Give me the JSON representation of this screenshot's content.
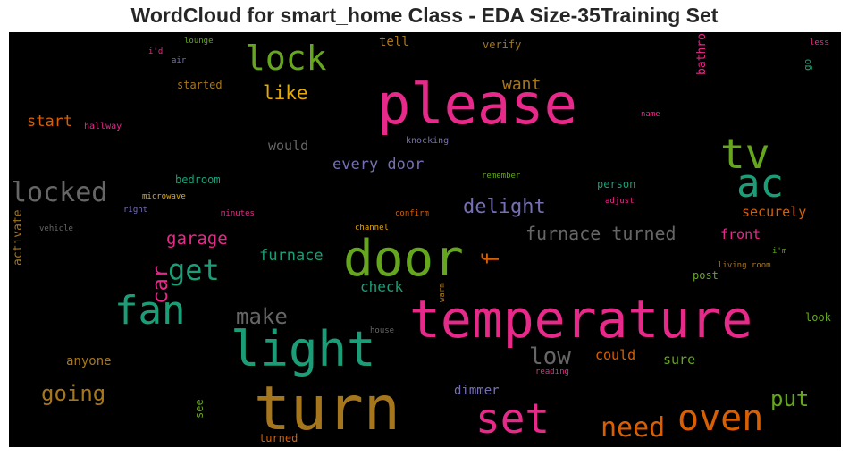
{
  "chart": {
    "title": "WordCloud for smart_home Class - EDA Size-35Training Set"
  },
  "chart_data": {
    "type": "wordcloud",
    "title": "WordCloud for smart_home Class - EDA Size-35Training Set",
    "background": "#000000",
    "words": [
      {
        "text": "please",
        "weight": 1.0,
        "color": "#e7298a"
      },
      {
        "text": "turn",
        "weight": 0.92,
        "color": "#a6761d"
      },
      {
        "text": "temperature",
        "weight": 0.88,
        "color": "#e7298a"
      },
      {
        "text": "door",
        "weight": 0.85,
        "color": "#66a61e"
      },
      {
        "text": "light",
        "weight": 0.82,
        "color": "#1b9e77"
      },
      {
        "text": "tv",
        "weight": 0.72,
        "color": "#66a61e"
      },
      {
        "text": "set",
        "weight": 0.7,
        "color": "#e7298a"
      },
      {
        "text": "ac",
        "weight": 0.68,
        "color": "#1b9e77"
      },
      {
        "text": "fan",
        "weight": 0.66,
        "color": "#1b9e77"
      },
      {
        "text": "oven",
        "weight": 0.6,
        "color": "#d95f02"
      },
      {
        "text": "lock",
        "weight": 0.58,
        "color": "#66a61e"
      },
      {
        "text": "locked",
        "weight": 0.5,
        "color": "#666666"
      },
      {
        "text": "get",
        "weight": 0.5,
        "color": "#1b9e77"
      },
      {
        "text": "need",
        "weight": 0.48,
        "color": "#d95f02"
      },
      {
        "text": "car",
        "weight": 0.42,
        "color": "#e7298a"
      },
      {
        "text": "f",
        "weight": 0.4,
        "color": "#d95f02"
      },
      {
        "text": "low",
        "weight": 0.4,
        "color": "#666666"
      },
      {
        "text": "make",
        "weight": 0.38,
        "color": "#666666"
      },
      {
        "text": "put",
        "weight": 0.36,
        "color": "#66a61e"
      },
      {
        "text": "going",
        "weight": 0.36,
        "color": "#a6761d"
      },
      {
        "text": "delight",
        "weight": 0.36,
        "color": "#7570b3"
      },
      {
        "text": "like",
        "weight": 0.33,
        "color": "#e6ab02"
      },
      {
        "text": "furnace turned",
        "weight": 0.32,
        "color": "#666666"
      },
      {
        "text": "garage",
        "weight": 0.31,
        "color": "#e7298a"
      },
      {
        "text": "want",
        "weight": 0.3,
        "color": "#a6761d"
      },
      {
        "text": "furnace",
        "weight": 0.29,
        "color": "#1b9e77"
      },
      {
        "text": "every door",
        "weight": 0.29,
        "color": "#7570b3"
      },
      {
        "text": "start",
        "weight": 0.27,
        "color": "#d95f02"
      },
      {
        "text": "check",
        "weight": 0.26,
        "color": "#1b9e77"
      },
      {
        "text": "would",
        "weight": 0.26,
        "color": "#666666"
      },
      {
        "text": "securely",
        "weight": 0.25,
        "color": "#d95f02"
      },
      {
        "text": "front",
        "weight": 0.24,
        "color": "#e7298a"
      },
      {
        "text": "could",
        "weight": 0.24,
        "color": "#d95f02"
      },
      {
        "text": "sure",
        "weight": 0.24,
        "color": "#66a61e"
      },
      {
        "text": "anyone",
        "weight": 0.22,
        "color": "#a6761d"
      },
      {
        "text": "dimmer",
        "weight": 0.22,
        "color": "#7570b3"
      },
      {
        "text": "tell",
        "weight": 0.22,
        "color": "#a6761d"
      },
      {
        "text": "bathroom",
        "weight": 0.22,
        "color": "#e7298a"
      },
      {
        "text": "activate",
        "weight": 0.2,
        "color": "#a6761d"
      },
      {
        "text": "see",
        "weight": 0.2,
        "color": "#66a61e"
      },
      {
        "text": "started",
        "weight": 0.18,
        "color": "#a6761d"
      },
      {
        "text": "bedroom",
        "weight": 0.18,
        "color": "#1b9e77"
      },
      {
        "text": "person",
        "weight": 0.18,
        "color": "#1b9e77"
      },
      {
        "text": "verify",
        "weight": 0.17,
        "color": "#a6761d"
      },
      {
        "text": "look",
        "weight": 0.17,
        "color": "#66a61e"
      },
      {
        "text": "post",
        "weight": 0.17,
        "color": "#66a61e"
      },
      {
        "text": "turned",
        "weight": 0.16,
        "color": "#d95f02"
      },
      {
        "text": "go",
        "weight": 0.16,
        "color": "#1b9e77"
      },
      {
        "text": "knocking",
        "weight": 0.14,
        "color": "#7570b3"
      },
      {
        "text": "hallway",
        "weight": 0.13,
        "color": "#e7298a"
      },
      {
        "text": "lounge",
        "weight": 0.13,
        "color": "#66a61e"
      },
      {
        "text": "i'd",
        "weight": 0.13,
        "color": "#e7298a"
      },
      {
        "text": "air",
        "weight": 0.13,
        "color": "#7570b3"
      },
      {
        "text": "name",
        "weight": 0.13,
        "color": "#e7298a"
      },
      {
        "text": "remember",
        "weight": 0.13,
        "color": "#66a61e"
      },
      {
        "text": "microwave",
        "weight": 0.13,
        "color": "#e6ab02"
      },
      {
        "text": "right",
        "weight": 0.13,
        "color": "#7570b3"
      },
      {
        "text": "minutes",
        "weight": 0.13,
        "color": "#e7298a"
      },
      {
        "text": "vehicle",
        "weight": 0.13,
        "color": "#666666"
      },
      {
        "text": "channel",
        "weight": 0.13,
        "color": "#e6ab02"
      },
      {
        "text": "confirm",
        "weight": 0.13,
        "color": "#d95f02"
      },
      {
        "text": "adjust",
        "weight": 0.13,
        "color": "#e7298a"
      },
      {
        "text": "less",
        "weight": 0.13,
        "color": "#e7298a"
      },
      {
        "text": "i'm",
        "weight": 0.13,
        "color": "#66a61e"
      },
      {
        "text": "living room",
        "weight": 0.13,
        "color": "#a6761d"
      },
      {
        "text": "warm",
        "weight": 0.13,
        "color": "#a6761d"
      },
      {
        "text": "house",
        "weight": 0.13,
        "color": "#666666"
      },
      {
        "text": "reading",
        "weight": 0.13,
        "color": "#e7298a"
      }
    ]
  }
}
